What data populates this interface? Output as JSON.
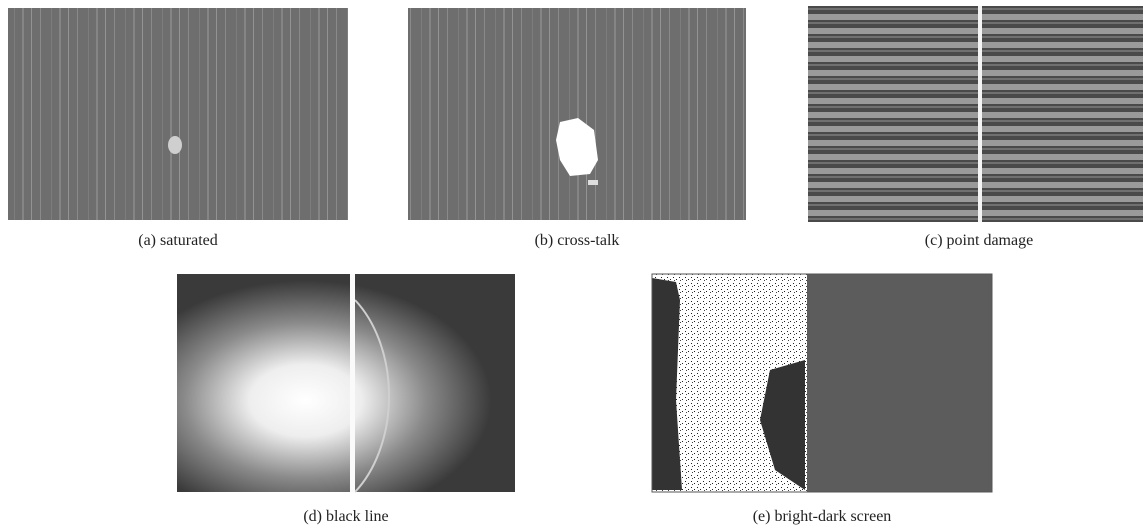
{
  "figure": {
    "panels": [
      {
        "caption": "(a) saturated"
      },
      {
        "caption": "(b) cross-talk"
      },
      {
        "caption": "(c) point damage"
      },
      {
        "caption": "(d) black line"
      },
      {
        "caption": "(e) bright-dark screen"
      }
    ]
  }
}
